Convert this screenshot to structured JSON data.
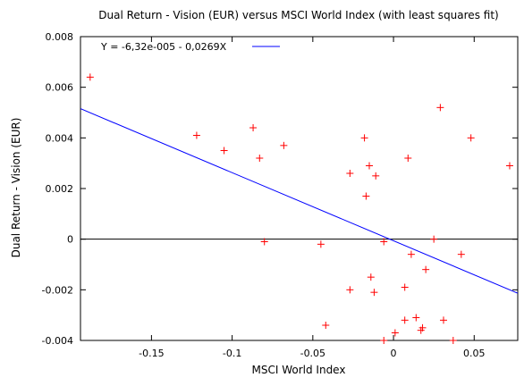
{
  "chart_data": {
    "type": "scatter",
    "title": "Dual Return - Vision (EUR) versus MSCI World Index (with least squares fit)",
    "xlabel": "MSCI World Index",
    "ylabel": "Dual Return - Vision (EUR)",
    "xlim": [
      -0.194,
      0.077
    ],
    "ylim": [
      -0.004,
      0.008
    ],
    "x_ticks": [
      -0.15,
      -0.1,
      -0.05,
      0,
      0.05
    ],
    "x_tick_labels": [
      "-0.15",
      "-0.1",
      "-0.05",
      "0",
      "0.05"
    ],
    "y_ticks": [
      -0.004,
      -0.002,
      0,
      0.002,
      0.004,
      0.006,
      0.008
    ],
    "y_tick_labels": [
      "-0.004",
      "-0.002",
      "0",
      "0.002",
      "0.004",
      "0.006",
      "0.008"
    ],
    "zero_line": true,
    "grid": false,
    "legend": {
      "position": "top-left",
      "label": "Y = -6,32e-005 - 0,0269X"
    },
    "fit": {
      "intercept": -6.32e-05,
      "slope": -0.0269,
      "color": "#0000ff"
    },
    "marker_color": "#ff0000",
    "points": [
      {
        "x": -0.188,
        "y": 0.0064
      },
      {
        "x": -0.122,
        "y": 0.0041
      },
      {
        "x": -0.105,
        "y": 0.0035
      },
      {
        "x": -0.087,
        "y": 0.0044
      },
      {
        "x": -0.083,
        "y": 0.0032
      },
      {
        "x": -0.08,
        "y": -0.0001
      },
      {
        "x": -0.068,
        "y": 0.0037
      },
      {
        "x": -0.045,
        "y": -0.0002
      },
      {
        "x": -0.042,
        "y": -0.0034
      },
      {
        "x": -0.027,
        "y": 0.0026
      },
      {
        "x": -0.027,
        "y": -0.002
      },
      {
        "x": -0.018,
        "y": 0.004
      },
      {
        "x": -0.017,
        "y": 0.0017
      },
      {
        "x": -0.015,
        "y": 0.0029
      },
      {
        "x": -0.014,
        "y": -0.0015
      },
      {
        "x": -0.012,
        "y": -0.0021
      },
      {
        "x": -0.011,
        "y": 0.0025
      },
      {
        "x": -0.006,
        "y": -0.0001
      },
      {
        "x": -0.006,
        "y": -0.004
      },
      {
        "x": 0.001,
        "y": -0.0037
      },
      {
        "x": 0.007,
        "y": -0.0019
      },
      {
        "x": 0.007,
        "y": -0.0032
      },
      {
        "x": 0.009,
        "y": 0.0032
      },
      {
        "x": 0.011,
        "y": -0.0006
      },
      {
        "x": 0.014,
        "y": -0.0031
      },
      {
        "x": 0.017,
        "y": -0.0036
      },
      {
        "x": 0.018,
        "y": -0.0035
      },
      {
        "x": 0.02,
        "y": -0.0012
      },
      {
        "x": 0.025,
        "y": 0.0
      },
      {
        "x": 0.029,
        "y": 0.0052
      },
      {
        "x": 0.031,
        "y": -0.0032
      },
      {
        "x": 0.037,
        "y": -0.004
      },
      {
        "x": 0.042,
        "y": -0.0006
      },
      {
        "x": 0.048,
        "y": 0.004
      },
      {
        "x": 0.072,
        "y": 0.0029
      }
    ]
  }
}
